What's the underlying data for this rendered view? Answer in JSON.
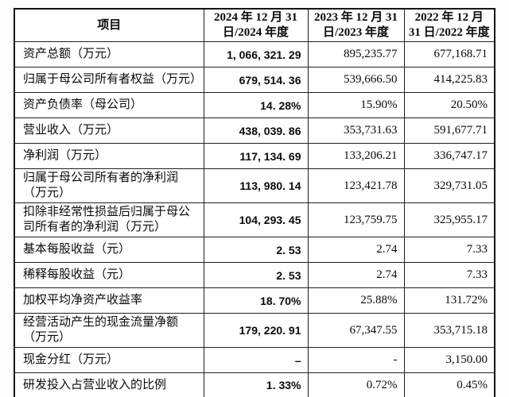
{
  "table": {
    "header": {
      "item": "项目",
      "col2024": {
        "line1": "2024 年 12 月 31",
        "line2": "日/2024 年度"
      },
      "col2023": {
        "line1": "2023 年 12 月 31",
        "line2": "日/2023 年度"
      },
      "col2022": {
        "line1": "2022 年 12 月",
        "line2": "31 日/2022 年度"
      }
    },
    "rows": [
      {
        "label": "资产总额（万元）",
        "v2024": "1, 066, 321. 29",
        "v2023": "895,235.77",
        "v2022": "677,168.71"
      },
      {
        "label": "归属于母公司所有者权益（万元）",
        "v2024": "679, 514. 36",
        "v2023": "539,666.50",
        "v2022": "414,225.83"
      },
      {
        "label": "资产负债率（母公司）",
        "v2024": "14. 28%",
        "v2023": "15.90%",
        "v2022": "20.50%"
      },
      {
        "label": "营业收入（万元）",
        "v2024": "438, 039. 86",
        "v2023": "353,731.63",
        "v2022": "591,677.71"
      },
      {
        "label": "净利润（万元）",
        "v2024": "117, 134. 69",
        "v2023": "133,206.21",
        "v2022": "336,747.17"
      },
      {
        "label": "归属于母公司所有者的净利润（万元）",
        "v2024": "113, 980. 14",
        "v2023": "123,421.78",
        "v2022": "329,731.05"
      },
      {
        "label": "扣除非经常性损益后归属于母公司所有者的净利润（万元）",
        "v2024": "104, 293. 45",
        "v2023": "123,759.75",
        "v2022": "325,955.17"
      },
      {
        "label": "基本每股收益（元）",
        "v2024": "2. 53",
        "v2023": "2.74",
        "v2022": "7.33"
      },
      {
        "label": "稀释每股收益（元）",
        "v2024": "2. 53",
        "v2023": "2.74",
        "v2022": "7.33"
      },
      {
        "label": "加权平均净资产收益率",
        "v2024": "18. 70%",
        "v2023": "25.88%",
        "v2022": "131.72%"
      },
      {
        "label": "经营活动产生的现金流量净额（万元）",
        "v2024": "179, 220. 91",
        "v2023": "67,347.55",
        "v2022": "353,715.18"
      },
      {
        "label": "现金分红（万元）",
        "v2024": "–",
        "v2023": "-",
        "v2022": "3,150.00"
      },
      {
        "label": "研发投入占营业收入的比例",
        "v2024": "1. 33%",
        "v2023": "0.72%",
        "v2022": "0.45%"
      }
    ]
  },
  "colors": {
    "background": "#ffffff",
    "border": "#141414",
    "text": "#0a0a0a"
  }
}
